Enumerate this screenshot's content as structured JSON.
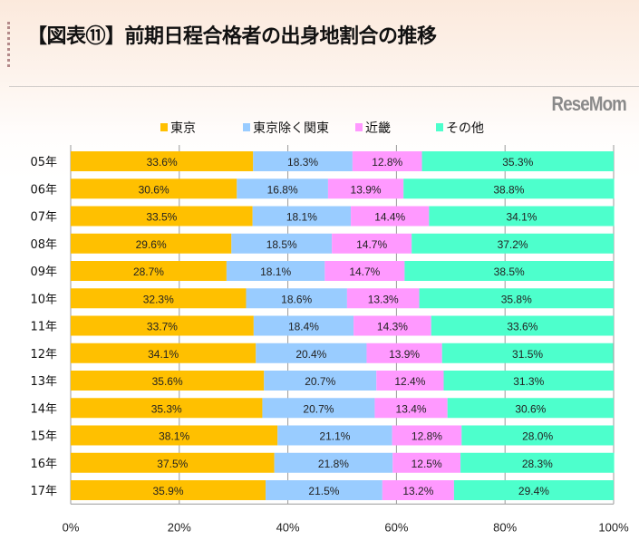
{
  "chart_data": {
    "type": "bar",
    "orientation": "horizontal",
    "stacked": "percent",
    "title": "【図表⑪】前期日程合格者の出身地割合の推移",
    "categories": [
      "05年",
      "06年",
      "07年",
      "08年",
      "09年",
      "10年",
      "11年",
      "12年",
      "13年",
      "14年",
      "15年",
      "16年",
      "17年"
    ],
    "series": [
      {
        "name": "東京",
        "color": "#ffc000",
        "values": [
          33.6,
          30.6,
          33.5,
          29.6,
          28.7,
          32.3,
          33.7,
          34.1,
          35.6,
          35.3,
          38.1,
          37.5,
          35.9
        ]
      },
      {
        "name": "東京除く関東",
        "color": "#99ccff",
        "values": [
          18.3,
          16.8,
          18.1,
          18.5,
          18.1,
          18.6,
          18.4,
          20.4,
          20.7,
          20.7,
          21.1,
          21.8,
          21.5
        ]
      },
      {
        "name": "近畿",
        "color": "#ff99ff",
        "values": [
          12.8,
          13.9,
          14.4,
          14.7,
          14.7,
          13.3,
          14.3,
          13.9,
          12.4,
          13.4,
          12.8,
          12.5,
          13.2
        ]
      },
      {
        "name": "その他",
        "color": "#4dffcc",
        "values": [
          35.3,
          38.8,
          34.1,
          37.2,
          38.5,
          35.8,
          33.6,
          31.5,
          31.3,
          30.6,
          28.0,
          28.3,
          29.4
        ]
      }
    ],
    "xticks": [
      "0%",
      "20%",
      "40%",
      "60%",
      "80%",
      "100%"
    ],
    "xlim": [
      0,
      100
    ],
    "grid": true,
    "legend": "top"
  },
  "watermark": "ReseMom"
}
